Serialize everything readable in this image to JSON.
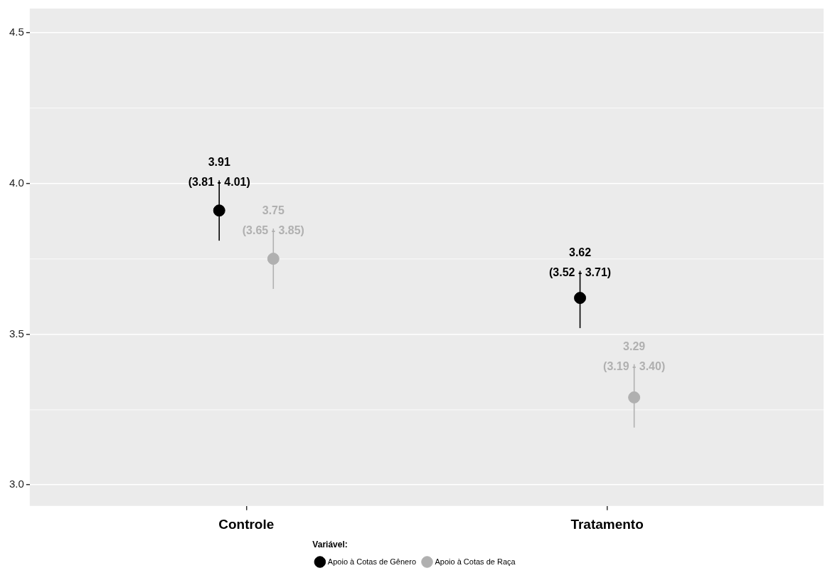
{
  "chart_data": {
    "type": "scatter",
    "categories": [
      "Controle",
      "Tratamento"
    ],
    "series": [
      {
        "name": "Apoio à Cotas de Gênero",
        "color": "#000000",
        "values": [
          3.91,
          3.62
        ],
        "errors": [
          [
            3.81,
            4.01
          ],
          [
            3.52,
            3.71
          ]
        ],
        "value_labels": [
          "3.91\n(3.81 - 4.01)",
          "3.62\n(3.52 - 3.71)"
        ]
      },
      {
        "name": "Apoio à Cotas de Raça",
        "color": "#b0b0b0",
        "values": [
          3.75,
          3.29
        ],
        "errors": [
          [
            3.65,
            3.85
          ],
          [
            3.19,
            3.4
          ]
        ],
        "value_labels": [
          "3.75\n(3.65 - 3.85)",
          "3.29\n(3.19 - 3.40)"
        ]
      }
    ],
    "ylim": [
      2.93,
      4.58
    ],
    "yticks": [
      {
        "value": 3,
        "label": "3.0"
      },
      {
        "value": 3.25,
        "label": null
      },
      {
        "value": 3.5,
        "label": "3.5"
      },
      {
        "value": 3.75,
        "label": null
      },
      {
        "value": 4,
        "label": "4.0"
      },
      {
        "value": 4.25,
        "label": null
      },
      {
        "value": 4.5,
        "label": "4.5"
      }
    ],
    "grid": "y",
    "legend": "bottom",
    "legend_title": "Variável:",
    "marker": "circle"
  }
}
